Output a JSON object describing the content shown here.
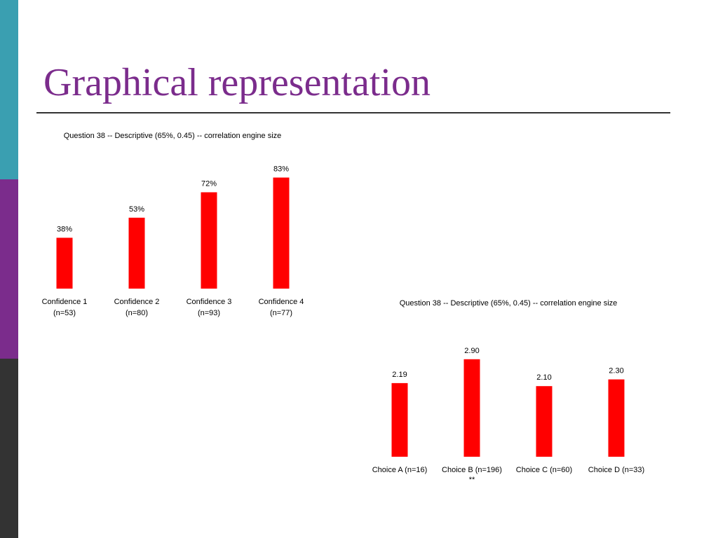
{
  "slide": {
    "title": "Graphical representation",
    "colors": {
      "title": "#7B2C8C",
      "bar": "#FF0000",
      "side_teal": "#3A9FB1",
      "side_purple": "#7B2C8C",
      "side_dark": "#333333"
    }
  },
  "chart_data": [
    {
      "type": "bar",
      "title": "Question 38 --  Descriptive  (65%, 0.45) --  correlation engine size",
      "categories": [
        [
          "Confidence 1",
          "(n=53)"
        ],
        [
          "Confidence 2",
          "(n=80)"
        ],
        [
          "Confidence 3",
          "(n=93)"
        ],
        [
          "Confidence 4",
          "(n=77)"
        ]
      ],
      "values": [
        38,
        53,
        72,
        83
      ],
      "value_labels": [
        "38%",
        "53%",
        "72%",
        "83%"
      ],
      "ylim": [
        0,
        100
      ],
      "grid": false,
      "color": "#FF0000"
    },
    {
      "type": "bar",
      "title": "Question 38 --  Descriptive  (65%, 0.45) --  correlation engine size",
      "categories": [
        [
          "Choice A (n=16)"
        ],
        [
          "Choice B (n=196)",
          "**"
        ],
        [
          "Choice C (n=60)"
        ],
        [
          "Choice D (n=33)"
        ]
      ],
      "values": [
        2.19,
        2.9,
        2.1,
        2.3
      ],
      "value_labels": [
        "2.19",
        "2.90",
        "2.10",
        "2.30"
      ],
      "ylim": [
        0,
        4
      ],
      "grid": false,
      "color": "#FF0000"
    }
  ]
}
